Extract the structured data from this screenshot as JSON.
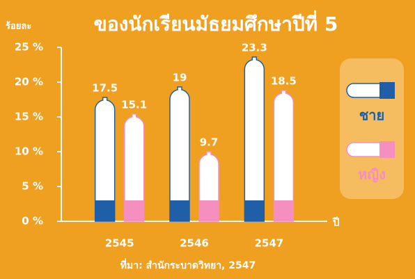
{
  "chart_data": {
    "type": "bar",
    "title": "ของนักเรียนมัธยมศึกษาปีที่ 5",
    "y_label": "ร้อยละ",
    "x_label": "ปี",
    "source": "ที่มา: สำนักระบาดวิทยา, 2547",
    "categories": [
      "2545",
      "2546",
      "2547"
    ],
    "series": [
      {
        "name": "ชาย",
        "color": "#1f5fa8",
        "values": [
          17.5,
          19,
          23.3
        ]
      },
      {
        "name": "หญิง",
        "color": "#f48fc0",
        "values": [
          15.1,
          9.7,
          18.5
        ]
      }
    ],
    "ylim": [
      0,
      25
    ],
    "yticks": [
      {
        "value": 0,
        "label": "0 %"
      },
      {
        "value": 5,
        "label": "5 %"
      },
      {
        "value": 10,
        "label": "10 %"
      },
      {
        "value": 15,
        "label": "15 %"
      },
      {
        "value": 20,
        "label": "20 %"
      },
      {
        "value": 25,
        "label": "25 %"
      }
    ],
    "legend": "right"
  }
}
